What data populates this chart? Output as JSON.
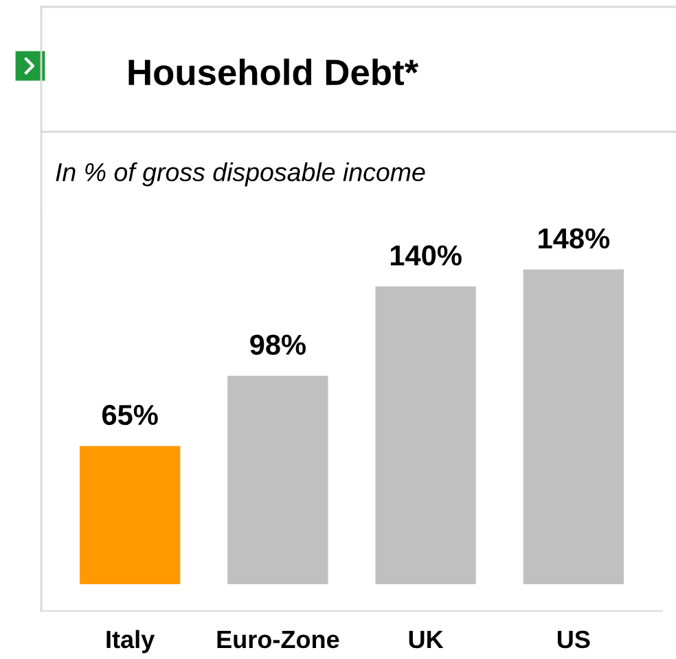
{
  "chart_data": {
    "type": "bar",
    "title": "Household Debt*",
    "subtitle": "In % of gross disposable income",
    "categories": [
      "Italy",
      "Euro-Zone",
      "UK",
      "US"
    ],
    "values": [
      65,
      98,
      140,
      148
    ],
    "colors": [
      "#ff9900",
      "#c0c0c0",
      "#c0c0c0",
      "#c0c0c0"
    ],
    "value_labels": [
      "65%",
      "98%",
      "140%",
      "148%"
    ]
  }
}
